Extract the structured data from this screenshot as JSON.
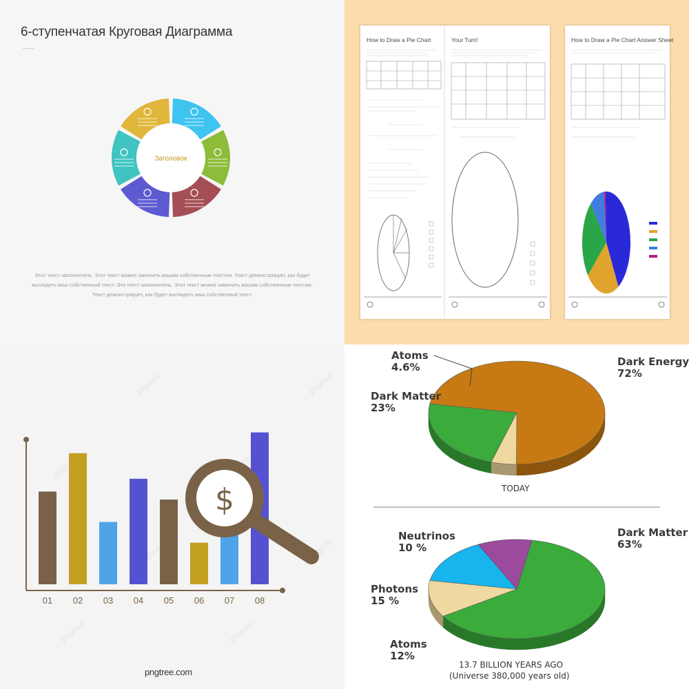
{
  "top_left": {
    "title": "6-ступенчатая Круговая Диаграмма",
    "center_label": "Заголовок",
    "body_text": "Этот текст-заполнитель. Этот текст можно заменить вашим собственным текстом. Текст демонстрирует, как будет выглядеть ваш собственный текст. Это текст-заполнитель. Этот текст можно заменить вашим собственным текстом. Текст демонстрирует, как будет выглядеть ваш собственный текст.",
    "segment_colors": [
      "#e0b63b",
      "#3fc4ef",
      "#8cbc3a",
      "#a64e55",
      "#5e5ad0",
      "#3fc4c2"
    ],
    "segment_icons": [
      "magnifier-icon",
      "pencil-icon",
      "thumbs-up-icon",
      "briefcase-icon",
      "lightbulb-icon",
      "diamond-icon"
    ]
  },
  "top_right": {
    "sheet1_title": "How to Draw a Pie Chart",
    "sheet2_title": "Your Turn!",
    "sheet3_title": "How to Draw a Pie Chart Answer Sheet",
    "answer_pie_colors": [
      "#2929d8",
      "#e0a42c",
      "#2aa548",
      "#3f7ee0",
      "#b02080"
    ]
  },
  "bottom_left": {
    "watermark": "pngtree",
    "logo": "pngtree.com",
    "icon": "dollar-magnifier-icon",
    "chart_data": {
      "type": "bar",
      "categories": [
        "01",
        "02",
        "03",
        "04",
        "05",
        "06",
        "07",
        "08"
      ],
      "values": [
        58,
        82,
        39,
        66,
        53,
        26,
        69,
        95
      ],
      "ylim": [
        0,
        100
      ],
      "colors": [
        "#7a6248",
        "#c39f22",
        "#4fa3e8",
        "#5552d2",
        "#7a6248",
        "#c39f22",
        "#4fa3e8",
        "#5552d2"
      ]
    }
  },
  "bottom_right": {
    "chart_data": [
      {
        "type": "pie",
        "caption": "TODAY",
        "slices": [
          {
            "label": "Dark Energy",
            "value": 72,
            "value_label": "72%",
            "color": "#c77a14"
          },
          {
            "label": "Atoms",
            "value": 4.6,
            "value_label": "4.6%",
            "color": "#f0d9a0"
          },
          {
            "label": "Dark Matter",
            "value": 23,
            "value_label": "23%",
            "color": "#3bab3b"
          }
        ]
      },
      {
        "type": "pie",
        "caption": "13.7 BILLION YEARS AGO",
        "subcaption": "(Universe 380,000 years old)",
        "slices": [
          {
            "label": "Dark Matter",
            "value": 63,
            "value_label": "63%",
            "color": "#3bab3b"
          },
          {
            "label": "Atoms",
            "value": 12,
            "value_label": "12%",
            "color": "#f0d9a0"
          },
          {
            "label": "Photons",
            "value": 15,
            "value_label": "15 %",
            "color": "#18b4ee"
          },
          {
            "label": "Neutrinos",
            "value": 10,
            "value_label": "10 %",
            "color": "#9b4a9e"
          }
        ]
      }
    ]
  }
}
